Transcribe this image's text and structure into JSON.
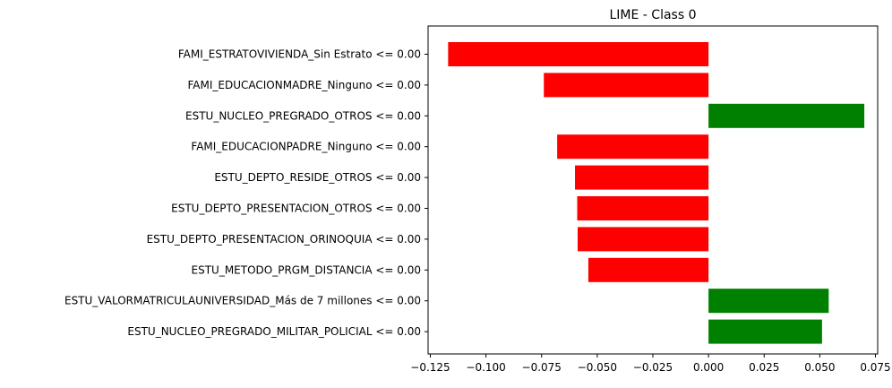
{
  "chart_data": {
    "type": "bar",
    "orientation": "horizontal",
    "title": "LIME - Class 0",
    "xlabel": "",
    "ylabel": "",
    "xlim": [
      -0.126,
      0.076
    ],
    "grid": false,
    "positive_color": "#008000",
    "negative_color": "#ff0000",
    "x_ticks": [
      -0.125,
      -0.1,
      -0.075,
      -0.05,
      -0.025,
      0.0,
      0.025,
      0.05,
      0.075
    ],
    "x_tick_labels": [
      "−0.125",
      "−0.100",
      "−0.075",
      "−0.050",
      "−0.025",
      "0.000",
      "0.025",
      "0.050",
      "0.075"
    ],
    "categories": [
      "FAMI_ESTRATOVIVIENDA_Sin Estrato <= 0.00",
      "FAMI_EDUCACIONMADRE_Ninguno <= 0.00",
      "ESTU_NUCLEO_PREGRADO_OTROS <= 0.00",
      "FAMI_EDUCACIONPADRE_Ninguno <= 0.00",
      "ESTU_DEPTO_RESIDE_OTROS <= 0.00",
      "ESTU_DEPTO_PRESENTACION_OTROS <= 0.00",
      "ESTU_DEPTO_PRESENTACION_ORINOQUIA <= 0.00",
      "ESTU_METODO_PRGM_DISTANCIA <= 0.00",
      "ESTU_VALORMATRICULAUNIVERSIDAD_Más de 7 millones <= 0.00",
      "ESTU_NUCLEO_PREGRADO_MILITAR_POLICIAL <= 0.00"
    ],
    "values": [
      -0.117,
      -0.074,
      0.07,
      -0.068,
      -0.06,
      -0.059,
      -0.0588,
      -0.054,
      0.054,
      0.051
    ]
  }
}
